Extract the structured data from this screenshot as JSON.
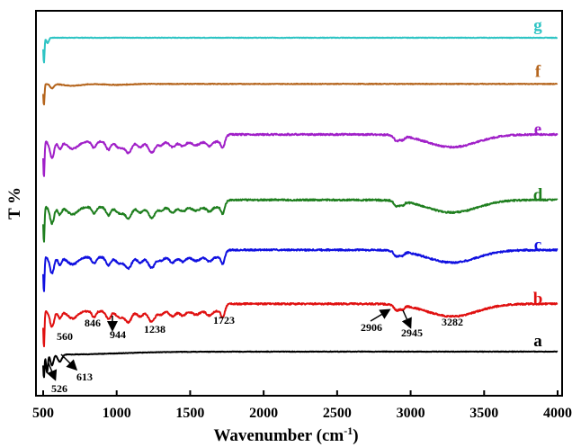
{
  "chart_data": {
    "type": "line",
    "xlabel": "Wavenumber (cm",
    "xlabel_sup": "-1",
    "xlabel_end": ")",
    "ylabel": "T %",
    "xlim": [
      500,
      4000
    ],
    "xticks": [
      "500",
      "1000",
      "1500",
      "2000",
      "2500",
      "3000",
      "3500",
      "4000"
    ],
    "grid": false,
    "series": [
      {
        "label": "g",
        "color": "#2EC4C4",
        "baseline": 0.93,
        "features": "flat"
      },
      {
        "label": "f",
        "color": "#B5651D",
        "baseline": 0.81,
        "features": "small"
      },
      {
        "label": "e",
        "color": "#A020C8",
        "baseline": 0.66,
        "features": "full"
      },
      {
        "label": "d",
        "color": "#1F7F1F",
        "baseline": 0.49,
        "features": "full"
      },
      {
        "label": "c",
        "color": "#1010E0",
        "baseline": 0.36,
        "features": "full"
      },
      {
        "label": "b",
        "color": "#E01010",
        "baseline": 0.22,
        "features": "full"
      },
      {
        "label": "a",
        "color": "#000000",
        "baseline": 0.11,
        "features": "base"
      }
    ],
    "peak_annotations": [
      {
        "text": "560",
        "x": 560
      },
      {
        "text": "846",
        "x": 846
      },
      {
        "text": "944",
        "x": 944
      },
      {
        "text": "1238",
        "x": 1238
      },
      {
        "text": "1723",
        "x": 1723
      },
      {
        "text": "2906",
        "x": 2906
      },
      {
        "text": "2945",
        "x": 2945
      },
      {
        "text": "3282",
        "x": 3282
      },
      {
        "text": "526",
        "x": 526
      },
      {
        "text": "613",
        "x": 613
      }
    ]
  }
}
